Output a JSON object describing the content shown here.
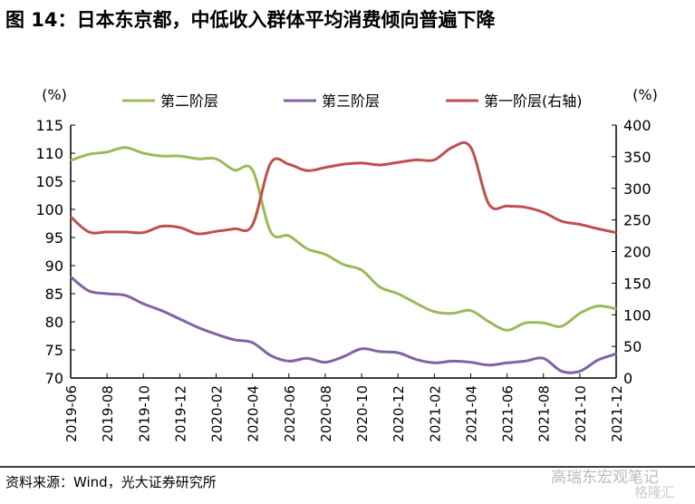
{
  "chart_data": {
    "type": "line",
    "title": "图 14：日本东京都，中低收入群体平均消费倾向普遍下降",
    "source": "资料来源：Wind，光大证券研究所",
    "watermark": "高瑞东宏观笔记",
    "watermark2": "格隆汇",
    "ylabel_left": "(%)",
    "ylabel_right": "(%)",
    "ylim_left": [
      70,
      115
    ],
    "ylim_right": [
      0,
      400
    ],
    "yticks_left": [
      70,
      75,
      80,
      85,
      90,
      95,
      100,
      105,
      110,
      115
    ],
    "yticks_right": [
      0,
      50,
      100,
      150,
      200,
      250,
      300,
      350,
      400
    ],
    "xtick_labels": [
      "2019-06",
      "2019-08",
      "2019-10",
      "2019-12",
      "2020-02",
      "2020-04",
      "2020-06",
      "2020-08",
      "2020-10",
      "2020-12",
      "2021-02",
      "2021-04",
      "2021-06",
      "2021-08",
      "2021-10",
      "2021-12"
    ],
    "x": [
      "2019-06",
      "2019-07",
      "2019-08",
      "2019-09",
      "2019-10",
      "2019-11",
      "2019-12",
      "2020-01",
      "2020-02",
      "2020-03",
      "2020-04",
      "2020-05",
      "2020-06",
      "2020-07",
      "2020-08",
      "2020-09",
      "2020-10",
      "2020-11",
      "2020-12",
      "2021-01",
      "2021-02",
      "2021-03",
      "2021-04",
      "2021-05",
      "2021-06",
      "2021-07",
      "2021-08",
      "2021-09",
      "2021-10",
      "2021-11",
      "2021-12"
    ],
    "legend_position": "top",
    "series": [
      {
        "name": "第二阶层",
        "axis": "left",
        "color": "#9bbb59",
        "values": [
          108.7,
          109.8,
          110.2,
          111,
          110,
          109.5,
          109.5,
          109,
          109,
          107,
          107,
          96,
          95.3,
          93,
          92,
          90.2,
          89.2,
          86.2,
          85,
          83.3,
          81.8,
          81.5,
          82,
          80,
          78.5,
          79.8,
          79.8,
          79.2,
          81.5,
          82.8,
          82.3
        ]
      },
      {
        "name": "第三阶层",
        "axis": "left",
        "color": "#8064a2",
        "values": [
          88,
          85.5,
          85,
          84.7,
          83.2,
          82,
          80.5,
          79,
          77.8,
          76.8,
          76.3,
          74,
          73,
          73.5,
          72.8,
          73.8,
          75.2,
          74.7,
          74.5,
          73.3,
          72.7,
          73,
          72.8,
          72.3,
          72.7,
          73,
          73.5,
          71.2,
          71.2,
          73.2,
          74.3
        ]
      },
      {
        "name": "第一阶层(右轴)",
        "axis": "right",
        "color": "#c0504d",
        "values": [
          255,
          231,
          231,
          231,
          230,
          240,
          238,
          228,
          232,
          236,
          242,
          340,
          338,
          328,
          333,
          338,
          340,
          337,
          341,
          345,
          345,
          365,
          365,
          275,
          272,
          270,
          262,
          248,
          243,
          236,
          230
        ]
      }
    ]
  }
}
